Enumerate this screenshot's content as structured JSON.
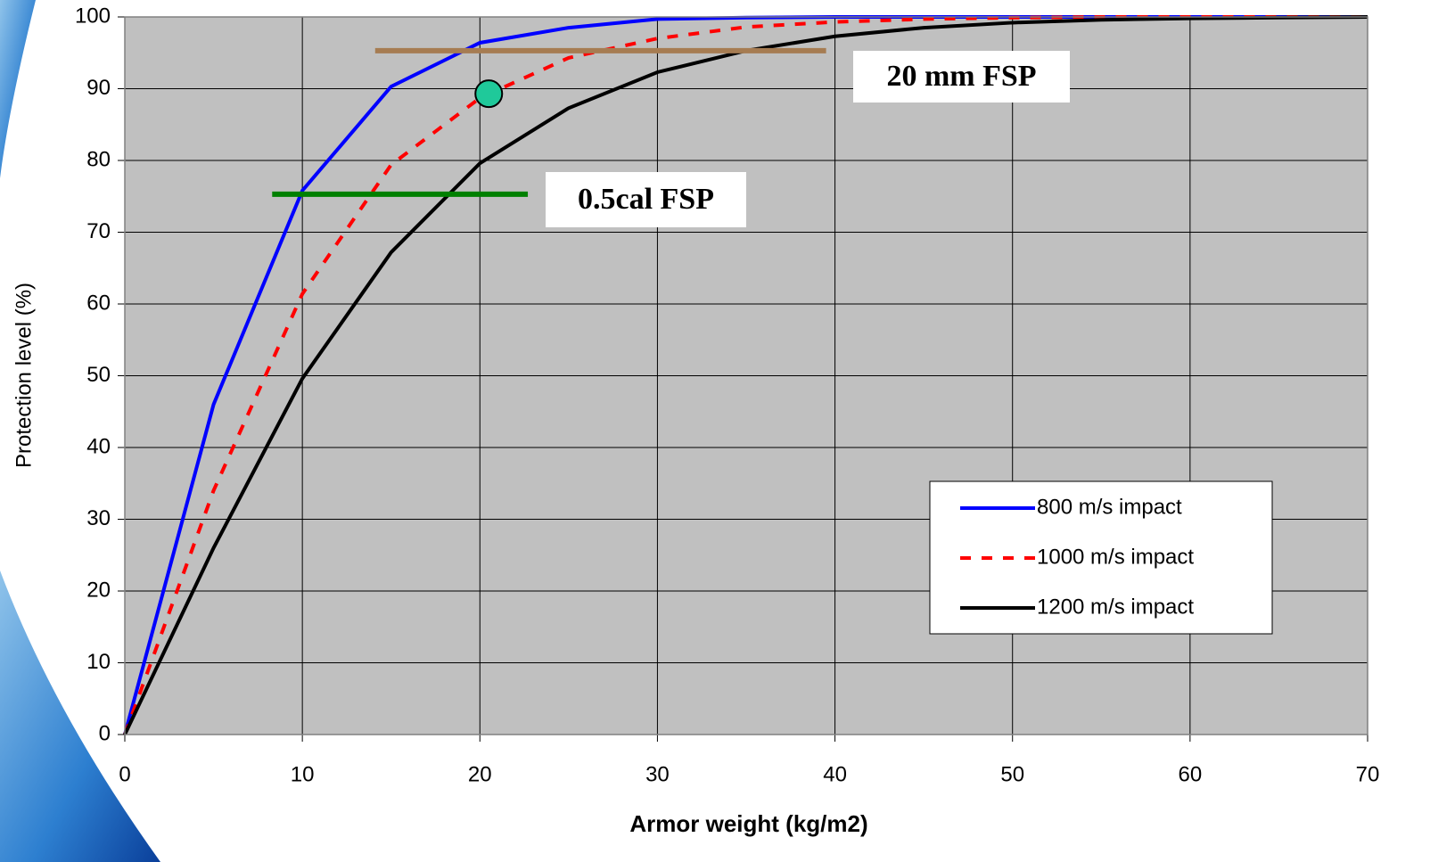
{
  "chart_data": {
    "type": "line",
    "x_label": "Armor weight (kg/m2)",
    "y_label": "Protection level (%)",
    "x": [
      0,
      5,
      10,
      15,
      20,
      25,
      30,
      35,
      40,
      45,
      50,
      55,
      60,
      65,
      70
    ],
    "series": [
      {
        "name": "800 m/s impact",
        "color": "#0000ff",
        "dashed": false,
        "values": [
          0,
          46,
          75.8,
          90.3,
          96.4,
          98.5,
          99.7,
          99.9,
          100,
          100,
          100,
          100,
          100,
          100,
          100
        ]
      },
      {
        "name": "1000 m/s impact",
        "color": "#ff0000",
        "dashed": true,
        "values": [
          0,
          34,
          61.4,
          79.4,
          88.7,
          94.3,
          97,
          98.6,
          99.3,
          99.7,
          99.9,
          100,
          100,
          100,
          100
        ]
      },
      {
        "name": "1200 m/s impact",
        "color": "#000000",
        "dashed": false,
        "values": [
          0,
          26,
          49.6,
          67.2,
          79.6,
          87.3,
          92.3,
          95.3,
          97.3,
          98.5,
          99.2,
          99.6,
          99.8,
          99.9,
          100
        ]
      }
    ],
    "reference_lines": [
      {
        "label": "20 mm FSP",
        "y": 95.3,
        "x": [
          14.1,
          39.5
        ],
        "color": "#a67c52"
      },
      {
        "label": "0.5cal FSP",
        "y": 75.3,
        "x": [
          8.3,
          22.7
        ],
        "color": "#008000"
      }
    ],
    "marker": {
      "x": 20.5,
      "y": 89.3,
      "color": "#1fc99a"
    },
    "xlim": [
      0,
      70
    ],
    "xticks": [
      0,
      10,
      20,
      30,
      40,
      50,
      60,
      70
    ],
    "ylim": [
      0,
      100
    ],
    "yticks": [
      0,
      10,
      20,
      30,
      40,
      50,
      60,
      70,
      80,
      90,
      100
    ],
    "grid": true,
    "plot_background": "#c0c0c0",
    "legend": "lower-right"
  }
}
